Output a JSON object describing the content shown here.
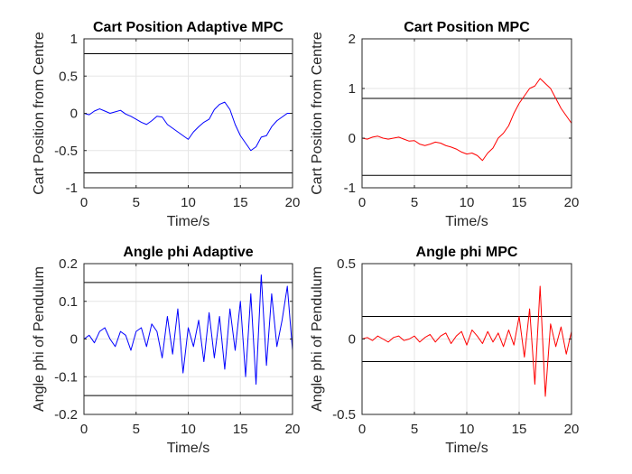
{
  "chart_data": [
    {
      "type": "line",
      "title": "Cart Position Adaptive MPC",
      "xlabel": "Time/s",
      "ylabel": "Cart Position from Centre",
      "xlim": [
        0,
        20
      ],
      "ylim": [
        -1,
        1
      ],
      "xticks": [
        0,
        5,
        10,
        15,
        20
      ],
      "yticks": [
        -1,
        -0.5,
        0,
        0.5,
        1
      ],
      "grid": true,
      "limits": [
        0.8,
        -0.8
      ],
      "series": [
        {
          "color": "#0000ff",
          "x": [
            0,
            0.5,
            1,
            1.5,
            2,
            2.5,
            3,
            3.5,
            4,
            4.5,
            5,
            5.5,
            6,
            6.5,
            7,
            7.5,
            8,
            8.5,
            9,
            9.5,
            10,
            10.5,
            11,
            11.5,
            12,
            12.5,
            13,
            13.5,
            14,
            14.5,
            15,
            15.5,
            16,
            16.5,
            17,
            17.5,
            18,
            18.5,
            19,
            19.5,
            20
          ],
          "y": [
            0.0,
            -0.02,
            0.03,
            0.06,
            0.03,
            0.0,
            0.02,
            0.04,
            -0.01,
            -0.04,
            -0.08,
            -0.12,
            -0.15,
            -0.1,
            -0.04,
            -0.05,
            -0.15,
            -0.2,
            -0.25,
            -0.3,
            -0.35,
            -0.25,
            -0.18,
            -0.12,
            -0.08,
            0.05,
            0.12,
            0.15,
            0.05,
            -0.15,
            -0.3,
            -0.4,
            -0.5,
            -0.45,
            -0.32,
            -0.3,
            -0.18,
            -0.1,
            -0.05,
            0.0,
            0.0
          ]
        }
      ]
    },
    {
      "type": "line",
      "title": "Cart Position MPC",
      "xlabel": "Time/s",
      "ylabel": "Cart Position from Centre",
      "xlim": [
        0,
        20
      ],
      "ylim": [
        -1,
        2
      ],
      "xticks": [
        0,
        5,
        10,
        15,
        20
      ],
      "yticks": [
        -1,
        0,
        1,
        2
      ],
      "grid": true,
      "limits": [
        0.8,
        -0.75
      ],
      "series": [
        {
          "color": "#ff0000",
          "x": [
            0,
            0.5,
            1,
            1.5,
            2,
            2.5,
            3,
            3.5,
            4,
            4.5,
            5,
            5.5,
            6,
            6.5,
            7,
            7.5,
            8,
            8.5,
            9,
            9.5,
            10,
            10.5,
            11,
            11.5,
            12,
            12.5,
            13,
            13.5,
            14,
            14.5,
            15,
            15.5,
            16,
            16.5,
            17,
            17.5,
            18,
            18.5,
            19,
            19.5,
            20
          ],
          "y": [
            0.0,
            -0.02,
            0.02,
            0.04,
            0.0,
            -0.02,
            0.0,
            0.02,
            -0.02,
            -0.06,
            -0.05,
            -0.12,
            -0.15,
            -0.12,
            -0.08,
            -0.1,
            -0.15,
            -0.18,
            -0.22,
            -0.28,
            -0.32,
            -0.3,
            -0.35,
            -0.45,
            -0.3,
            -0.2,
            0.0,
            0.1,
            0.25,
            0.5,
            0.7,
            0.85,
            1.0,
            1.05,
            1.2,
            1.1,
            1.0,
            0.8,
            0.6,
            0.45,
            0.3
          ]
        }
      ]
    },
    {
      "type": "line",
      "title": "Angle phi Adaptive",
      "xlabel": "Time/s",
      "ylabel": "Angle phi of Pendulum",
      "xlim": [
        0,
        20
      ],
      "ylim": [
        -0.2,
        0.2
      ],
      "xticks": [
        0,
        5,
        10,
        15,
        20
      ],
      "yticks": [
        -0.2,
        -0.1,
        0,
        0.1,
        0.2
      ],
      "grid": true,
      "limits": [
        0.15,
        -0.15
      ],
      "series": [
        {
          "color": "#0000ff",
          "x": [
            0,
            0.5,
            1,
            1.5,
            2,
            2.5,
            3,
            3.5,
            4,
            4.5,
            5,
            5.5,
            6,
            6.5,
            7,
            7.5,
            8,
            8.5,
            9,
            9.5,
            10,
            10.5,
            11,
            11.5,
            12,
            12.5,
            13,
            13.5,
            14,
            14.5,
            15,
            15.5,
            16,
            16.5,
            17,
            17.5,
            18,
            18.5,
            19,
            19.5,
            20
          ],
          "y": [
            0.0,
            0.01,
            -0.01,
            0.02,
            0.03,
            0.0,
            -0.02,
            0.02,
            0.01,
            -0.03,
            0.02,
            0.03,
            -0.02,
            0.04,
            0.02,
            -0.05,
            0.06,
            -0.04,
            0.08,
            -0.09,
            0.03,
            -0.02,
            0.05,
            -0.06,
            0.07,
            -0.05,
            0.06,
            -0.08,
            0.08,
            -0.03,
            0.1,
            -0.1,
            0.12,
            -0.12,
            0.17,
            -0.07,
            0.12,
            -0.02,
            0.05,
            0.14,
            -0.03
          ]
        }
      ]
    },
    {
      "type": "line",
      "title": "Angle phi MPC",
      "xlabel": "Time/s",
      "ylabel": "Angle phi of Pendulum",
      "xlim": [
        0,
        20
      ],
      "ylim": [
        -0.5,
        0.5
      ],
      "xticks": [
        0,
        5,
        10,
        15,
        20
      ],
      "yticks": [
        -0.5,
        0,
        0.5
      ],
      "grid": true,
      "limits": [
        0.15,
        -0.15
      ],
      "series": [
        {
          "color": "#ff0000",
          "x": [
            0,
            0.5,
            1,
            1.5,
            2,
            2.5,
            3,
            3.5,
            4,
            4.5,
            5,
            5.5,
            6,
            6.5,
            7,
            7.5,
            8,
            8.5,
            9,
            9.5,
            10,
            10.5,
            11,
            11.5,
            12,
            12.5,
            13,
            13.5,
            14,
            14.5,
            15,
            15.5,
            16,
            16.5,
            17,
            17.5,
            18,
            18.5,
            19,
            19.5,
            20
          ],
          "y": [
            0.0,
            0.01,
            -0.01,
            0.02,
            0.0,
            -0.02,
            0.01,
            0.02,
            -0.01,
            0.0,
            0.02,
            -0.02,
            0.01,
            0.03,
            -0.02,
            0.02,
            0.04,
            -0.03,
            0.02,
            0.05,
            -0.04,
            0.06,
            0.02,
            -0.03,
            0.05,
            -0.02,
            0.04,
            -0.05,
            0.06,
            -0.04,
            0.15,
            -0.12,
            0.2,
            -0.3,
            0.35,
            -0.38,
            0.1,
            -0.05,
            0.08,
            -0.1,
            0.05
          ]
        }
      ]
    }
  ]
}
